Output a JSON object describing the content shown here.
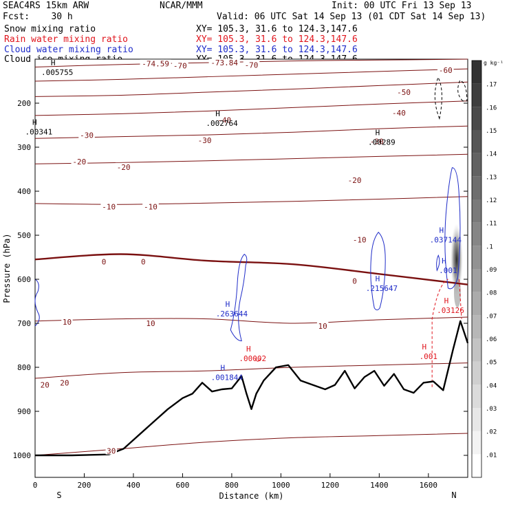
{
  "header": {
    "title": "SEAC4RS 15km ARW",
    "forecast": "Fcst:    30 h",
    "center": "NCAR/MMM",
    "init": "Init: 00 UTC Fri 13 Sep 13",
    "valid": "Valid: 06 UTC Sat 14 Sep 13 (01 CDT Sat 14 Sep 13)",
    "fields": [
      {
        "label": "Snow mixing ratio",
        "xy": "XY= 105.3, 31.6 to 124.3,147.6",
        "color": "#000000"
      },
      {
        "label": "Rain water mixing ratio",
        "xy": "XY= 105.3, 31.6 to 124.3,147.6",
        "color": "#e0141c"
      },
      {
        "label": "Cloud water mixing ratio",
        "xy": "XY= 105.3, 31.6 to 124.3,147.6",
        "color": "#1e2bc8"
      },
      {
        "label": "Cloud ice mixing ratio",
        "xy": "XY= 105.3, 31.6 to 124.3,147.6",
        "color": "#000000"
      }
    ]
  },
  "chart_data": {
    "type": "cross-section",
    "xlabel": "Distance (km)",
    "ylabel": "Pressure (hPa)",
    "xlim": [
      0,
      1760
    ],
    "ylim": [
      1050,
      100
    ],
    "x_ticks": [
      0,
      200,
      400,
      600,
      800,
      1000,
      1200,
      1400,
      1600
    ],
    "y_ticks": [
      200,
      300,
      400,
      500,
      600,
      700,
      800,
      900,
      1000
    ],
    "end_labels": {
      "left": "S",
      "right": "N"
    },
    "colorbar": {
      "unit": "g kg⁻¹",
      "ticks": [
        ".01",
        ".02",
        ".03",
        ".04",
        ".05",
        ".06",
        ".07",
        ".08",
        ".09",
        ".1",
        ".11",
        ".12",
        ".13",
        ".14",
        ".15",
        ".16",
        ".17"
      ]
    },
    "isotherms": [
      {
        "label": "-70",
        "p": [
          118,
          112,
          108,
          104,
          102,
          100
        ]
      },
      {
        "label": "-60",
        "p": [
          150,
          146,
          140,
          134,
          128,
          122
        ]
      },
      {
        "label": "-50",
        "p": [
          185,
          182,
          175,
          168,
          160,
          152
        ]
      },
      {
        "label": "-40",
        "p": [
          228,
          224,
          218,
          210,
          202,
          195
        ]
      },
      {
        "label": "-30",
        "p": [
          280,
          276,
          272,
          266,
          258,
          252
        ]
      },
      {
        "label": "-20",
        "p": [
          338,
          335,
          331,
          326,
          321,
          316
        ]
      },
      {
        "label": "-10",
        "p": [
          428,
          430,
          427,
          423,
          418,
          412
        ]
      },
      {
        "label": "0",
        "p": [
          555,
          543,
          558,
          566,
          588,
          612
        ]
      },
      {
        "label": "10",
        "p": [
          695,
          690,
          690,
          700,
          692,
          686
        ]
      },
      {
        "label": "20",
        "p": [
          825,
          812,
          808,
          800,
          795,
          790
        ]
      },
      {
        "label": "30",
        "p": [
          1000,
          985,
          970,
          960,
          955,
          950
        ]
      }
    ],
    "isotherm_x": [
      0,
      350,
      700,
      1050,
      1400,
      1760
    ],
    "isotherm_labels": [
      {
        "text": "-74.59",
        "x": 490,
        "p": 110
      },
      {
        "text": "-73.84",
        "x": 770,
        "p": 108
      },
      {
        "text": "-70",
        "x": 590,
        "p": 115
      },
      {
        "text": "-70",
        "x": 880,
        "p": 113
      },
      {
        "text": "-60",
        "x": 1670,
        "p": 125
      },
      {
        "text": "-50",
        "x": 1500,
        "p": 175
      },
      {
        "text": "-40",
        "x": 1480,
        "p": 222
      },
      {
        "text": "-40",
        "x": 770,
        "p": 238
      },
      {
        "text": "-30",
        "x": 210,
        "p": 273
      },
      {
        "text": "-30",
        "x": 690,
        "p": 284
      },
      {
        "text": "-30",
        "x": 1390,
        "p": 287
      },
      {
        "text": "-20",
        "x": 180,
        "p": 333
      },
      {
        "text": "-20",
        "x": 360,
        "p": 345
      },
      {
        "text": "-20",
        "x": 1300,
        "p": 375
      },
      {
        "text": "-10",
        "x": 300,
        "p": 435
      },
      {
        "text": "-10",
        "x": 470,
        "p": 435
      },
      {
        "text": "-10",
        "x": 1320,
        "p": 510
      },
      {
        "text": "0",
        "x": 280,
        "p": 560
      },
      {
        "text": "0",
        "x": 440,
        "p": 560
      },
      {
        "text": "0",
        "x": 1300,
        "p": 604
      },
      {
        "text": "10",
        "x": 130,
        "p": 697
      },
      {
        "text": "10",
        "x": 470,
        "p": 700
      },
      {
        "text": "10",
        "x": 1170,
        "p": 706
      },
      {
        "text": "20",
        "x": 40,
        "p": 840
      },
      {
        "text": "20",
        "x": 120,
        "p": 835
      },
      {
        "text": "30",
        "x": 310,
        "p": 990
      }
    ],
    "terrain": {
      "x": [
        0,
        150,
        300,
        360,
        420,
        480,
        540,
        600,
        640,
        680,
        720,
        760,
        800,
        840,
        860,
        880,
        900,
        930,
        980,
        1030,
        1080,
        1130,
        1180,
        1220,
        1260,
        1300,
        1340,
        1380,
        1420,
        1460,
        1500,
        1540,
        1580,
        1620,
        1660,
        1700,
        1730,
        1760
      ],
      "p": [
        1000,
        1000,
        998,
        985,
        955,
        925,
        895,
        870,
        860,
        835,
        855,
        850,
        848,
        820,
        860,
        895,
        860,
        830,
        800,
        795,
        830,
        840,
        850,
        840,
        808,
        848,
        822,
        808,
        842,
        815,
        850,
        858,
        835,
        832,
        852,
        760,
        695,
        745
      ]
    },
    "extrema": [
      {
        "text": ".005755",
        "x": 90,
        "p": 130,
        "color": "#000000"
      },
      {
        "text": ".00341",
        "x": 15,
        "p": 265,
        "color": "#000000"
      },
      {
        "text": ".002764",
        "x": 760,
        "p": 245,
        "color": "#000000"
      },
      {
        "text": ".00289",
        "x": 1410,
        "p": 288,
        "color": "#000000"
      },
      {
        "text": ".037144",
        "x": 1670,
        "p": 510,
        "color": "#1e2bc8"
      },
      {
        "text": ".001",
        "x": 1680,
        "p": 580,
        "color": "#1e2bc8"
      },
      {
        "text": ".215647",
        "x": 1410,
        "p": 620,
        "color": "#1e2bc8"
      },
      {
        "text": ".263644",
        "x": 800,
        "p": 678,
        "color": "#1e2bc8"
      },
      {
        "text": ".001844",
        "x": 780,
        "p": 823,
        "color": "#1e2bc8"
      },
      {
        "text": ".03126",
        "x": 1690,
        "p": 670,
        "color": "#e0141c"
      },
      {
        "text": ".00002",
        "x": 885,
        "p": 780,
        "color": "#e0141c"
      },
      {
        "text": ".001",
        "x": 1600,
        "p": 775,
        "color": "#e0141c"
      }
    ]
  }
}
